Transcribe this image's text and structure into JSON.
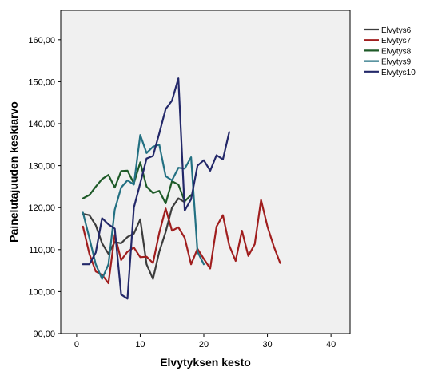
{
  "chart_data": {
    "type": "line",
    "title": "",
    "xlabel": "Elvytyksen kesto",
    "ylabel": "Painelutajuuden keskiarvo",
    "xlim": [
      -2.5,
      43
    ],
    "ylim": [
      90,
      167
    ],
    "x_ticks": [
      0,
      10,
      20,
      30,
      40
    ],
    "y_ticks": [
      90,
      100,
      110,
      120,
      130,
      140,
      150,
      160
    ],
    "y_tick_labels": [
      "90,00",
      "100,00",
      "110,00",
      "120,00",
      "130,00",
      "140,00",
      "150,00",
      "160,00"
    ],
    "grid": false,
    "legend_position": "right",
    "plot_background": "#f0f0f0",
    "series": [
      {
        "name": "Elvytys6",
        "color": "#3c3c3c",
        "x": [
          1,
          2,
          3,
          4,
          5,
          6,
          7,
          8,
          9,
          10,
          11,
          12,
          13,
          14,
          15,
          16,
          17
        ],
        "y": [
          118.5,
          118.2,
          115.8,
          111.5,
          109.0,
          111.8,
          111.5,
          113.0,
          113.8,
          117.2,
          106.5,
          103.0,
          109.5,
          114.2,
          120.0,
          122.2,
          121.3
        ]
      },
      {
        "name": "Elvytys7",
        "color": "#a01e1e",
        "x": [
          1,
          2,
          3,
          4,
          5,
          6,
          7,
          8,
          9,
          10,
          11,
          12,
          13,
          14,
          15,
          16,
          17,
          18,
          19,
          20,
          21,
          22,
          23,
          24,
          25,
          26,
          27,
          28,
          29,
          30,
          31,
          32
        ],
        "y": [
          115.5,
          109.0,
          104.8,
          104.0,
          102.0,
          113.5,
          107.5,
          109.5,
          110.5,
          108.2,
          108.3,
          106.8,
          114.0,
          119.8,
          114.5,
          115.3,
          112.8,
          106.5,
          110.2,
          107.8,
          105.5,
          115.5,
          118.2,
          111.0,
          107.3,
          114.5,
          108.5,
          111.3,
          121.8,
          115.5,
          110.8,
          106.8
        ]
      },
      {
        "name": "Elvytys8",
        "color": "#1e5a28",
        "x": [
          1,
          2,
          3,
          4,
          5,
          6,
          7,
          8,
          9,
          10,
          11,
          12,
          13,
          14,
          15,
          16,
          17,
          18
        ],
        "y": [
          122.2,
          123.0,
          125.0,
          126.8,
          127.8,
          124.8,
          128.7,
          128.8,
          125.8,
          130.8,
          125.0,
          123.5,
          124.0,
          121.0,
          126.3,
          125.5,
          121.5,
          123.0
        ]
      },
      {
        "name": "Elvytys9",
        "color": "#237082",
        "x": [
          1,
          2,
          3,
          4,
          5,
          6,
          7,
          8,
          9,
          10,
          11,
          12,
          13,
          14,
          15,
          16,
          17,
          18,
          19,
          20
        ],
        "y": [
          118.8,
          112.8,
          106.5,
          103.0,
          106.5,
          119.5,
          124.8,
          126.5,
          125.5,
          137.3,
          133.0,
          134.5,
          135.0,
          127.5,
          126.5,
          129.5,
          129.3,
          132.0,
          109.5,
          106.5
        ]
      },
      {
        "name": "Elvytys10",
        "color": "#232869",
        "x": [
          1,
          2,
          3,
          4,
          5,
          6,
          7,
          8,
          9,
          10,
          11,
          12,
          13,
          14,
          15,
          16,
          17,
          18,
          19,
          20,
          21,
          22,
          23,
          24
        ],
        "y": [
          106.5,
          106.5,
          109.3,
          117.5,
          116.0,
          115.0,
          99.3,
          98.3,
          120.0,
          125.8,
          131.7,
          132.3,
          137.7,
          143.5,
          145.5,
          150.8,
          119.3,
          122.0,
          130.0,
          131.3,
          128.8,
          132.5,
          131.5,
          138.0
        ]
      }
    ]
  }
}
